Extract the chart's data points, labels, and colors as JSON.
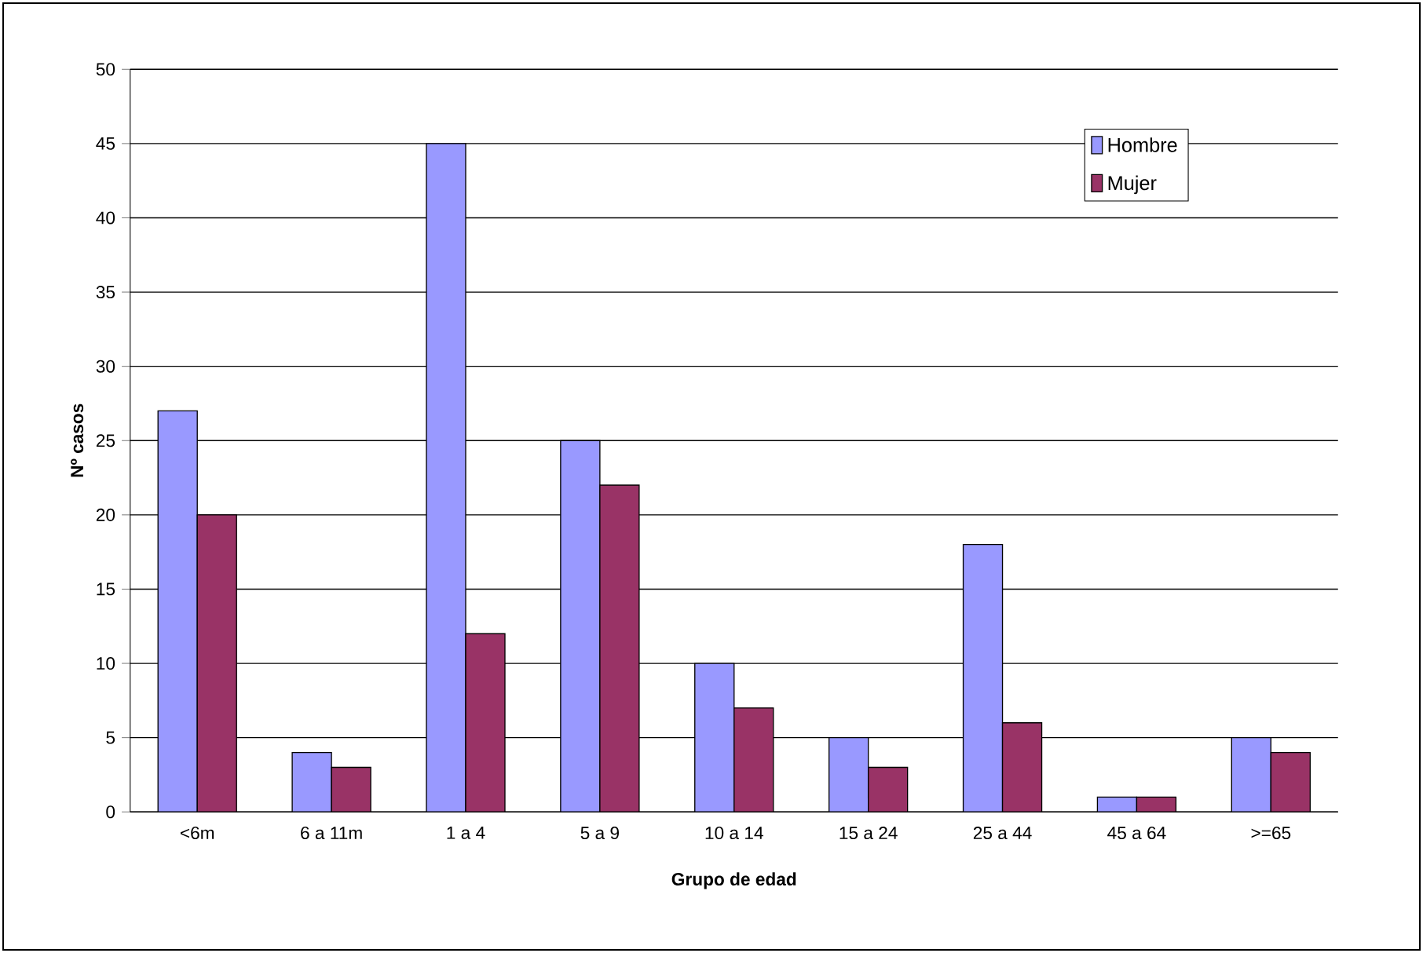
{
  "chart_data": {
    "type": "bar",
    "xlabel": "Grupo de edad",
    "ylabel": "Nº casos",
    "categories": [
      "<6m",
      "6 a 11m",
      "1 a 4",
      "5 a 9",
      "10 a 14",
      "15 a 24",
      "25 a 44",
      "45 a 64",
      ">=65"
    ],
    "series": [
      {
        "name": "Hombre",
        "color": "#9999ff",
        "values": [
          27,
          4,
          45,
          25,
          10,
          5,
          18,
          1,
          5
        ]
      },
      {
        "name": "Mujer",
        "color": "#993366",
        "values": [
          20,
          3,
          12,
          22,
          7,
          3,
          6,
          1,
          4
        ]
      }
    ],
    "ylim": [
      0,
      50
    ],
    "yticks": [
      0,
      5,
      10,
      15,
      20,
      25,
      30,
      35,
      40,
      45,
      50
    ],
    "grid": "y",
    "legend": "top right"
  }
}
